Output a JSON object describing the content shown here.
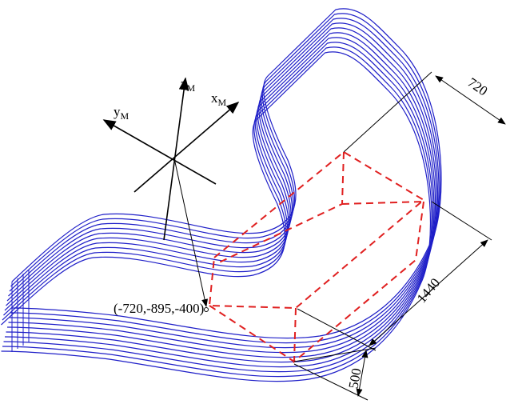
{
  "axes": [
    {
      "label": "z",
      "subscript": "M"
    },
    {
      "label": "x",
      "subscript": "M"
    },
    {
      "label": "y",
      "subscript": "M"
    }
  ],
  "point_label": "(-720,-895,-400)",
  "dimensions": [
    "720",
    "1440",
    "500"
  ]
}
